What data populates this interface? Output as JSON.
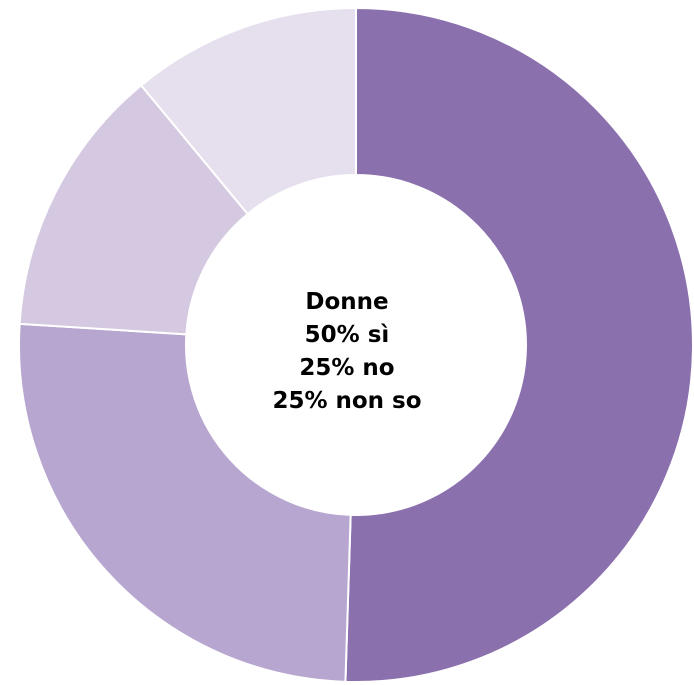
{
  "chart_data": {
    "type": "pie",
    "donut": true,
    "slices": [
      {
        "value": 0.505,
        "color": "#8b70ae"
      },
      {
        "value": 0.255,
        "color": "#b7a6cf"
      },
      {
        "value": 0.13,
        "color": "#d4c9e1"
      },
      {
        "value": 0.11,
        "color": "#e6e0ee"
      }
    ],
    "center_text": {
      "title": "Donne",
      "lines": [
        "50% sì",
        "25% no",
        "25% non so"
      ]
    },
    "title": "",
    "legend": "none"
  }
}
